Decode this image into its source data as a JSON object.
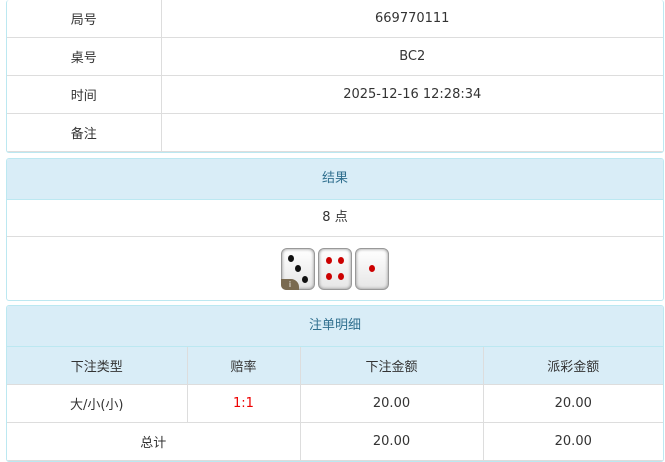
{
  "info": [
    {
      "label": "局号",
      "value": "669770111"
    },
    {
      "label": "桌号",
      "value": "BC2"
    },
    {
      "label": "时间",
      "value": "2025-12-16 12:28:34"
    },
    {
      "label": "备注",
      "value": ""
    }
  ],
  "result": {
    "title": "结果",
    "points": "8 点",
    "dice": [
      3,
      4,
      1
    ],
    "badge": "i"
  },
  "bets": {
    "title": "注单明细",
    "headers": [
      "下注类型",
      "赔率",
      "下注金额",
      "派彩金额"
    ],
    "rows": [
      {
        "type": "大/小(小)",
        "odds": "1:1",
        "amount": "20.00",
        "payout": "20.00"
      }
    ],
    "total": {
      "label": "总计",
      "amount": "20.00",
      "payout": "20.00"
    },
    "odds_color": "#ee0000"
  }
}
